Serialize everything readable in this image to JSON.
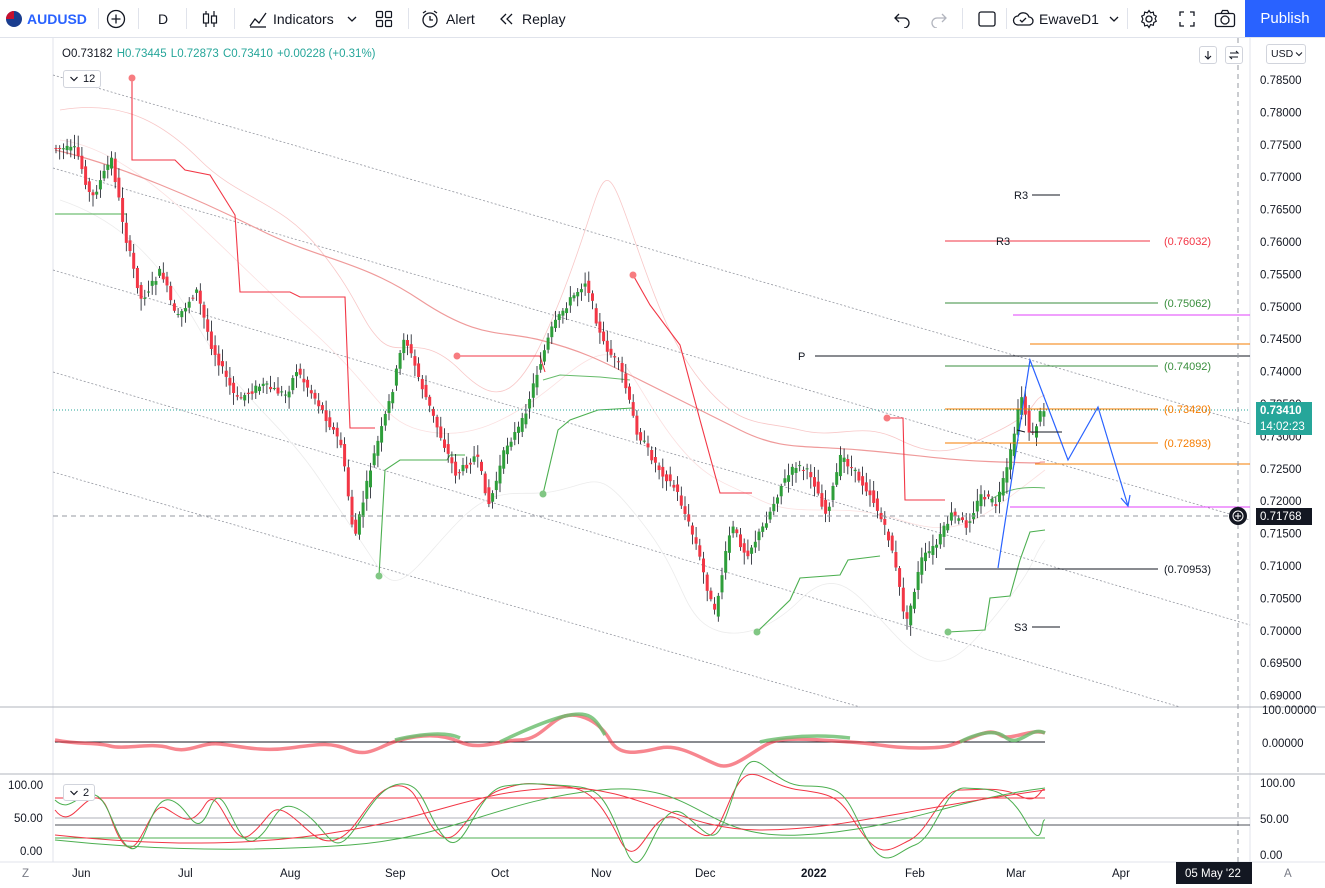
{
  "toolbar": {
    "symbol": "AUDUSD",
    "interval": "D",
    "indicators_label": "Indicators",
    "alert_label": "Alert",
    "replay_label": "Replay",
    "layout_name": "EwaveD1",
    "publish_label": "Publish"
  },
  "legend": {
    "open": "O0.73182",
    "high": "H0.73445",
    "low": "L0.72873",
    "close": "C0.73410",
    "change": "+0.00228 (+0.31%)",
    "indicator_count": "12",
    "pane_count": "2"
  },
  "price_axis": {
    "currency": "USD",
    "ticks": [
      "0.78500",
      "0.78000",
      "0.77500",
      "0.77000",
      "0.76500",
      "0.76000",
      "0.75500",
      "0.75000",
      "0.74500",
      "0.74000",
      "0.73500",
      "0.73000",
      "0.72500",
      "0.72000",
      "0.71500",
      "0.71000",
      "0.70500",
      "0.70000",
      "0.69500",
      "0.69000"
    ],
    "last_price": "0.73410",
    "countdown": "14:02:23",
    "crosshair_price": "0.71768"
  },
  "oscillator1_axis": {
    "ticks": [
      "100.00000",
      "0.00000"
    ]
  },
  "oscillator2_axis": {
    "left_ticks": [
      "100.00",
      "50.00",
      "0.00"
    ],
    "right_ticks": [
      "100.00",
      "50.00",
      "0.00"
    ]
  },
  "time_axis": {
    "labels": [
      "Jun",
      "Jul",
      "Aug",
      "Sep",
      "Oct",
      "Nov",
      "Dec",
      "2022",
      "Feb",
      "Mar",
      "Apr"
    ],
    "crosshair_date": "05 May '22",
    "left_button": "Z",
    "right_button": "A"
  },
  "pivot_levels": [
    {
      "label": "R3",
      "value": "(0.76032)",
      "color": "#f23645"
    },
    {
      "label": "",
      "value": "(0.75062)",
      "color": "#388e3c"
    },
    {
      "label": "",
      "value": "(0.74092)",
      "color": "#388e3c"
    },
    {
      "label": "",
      "value": "(0.73420)",
      "color": "#f57c00"
    },
    {
      "label": "",
      "value": "(0.72893)",
      "color": "#f57c00"
    },
    {
      "label": "",
      "value": "(0.70953)",
      "color": "#131722"
    }
  ],
  "chart_labels": {
    "r3_upper": "R3",
    "p": "P",
    "s3": "S3"
  },
  "colors": {
    "up": "#26a69a",
    "up_candle": "#2e9e3a",
    "down": "#f23645",
    "accent": "#2962ff"
  },
  "chart_data": {
    "type": "candlestick",
    "symbol": "AUDUSD",
    "timeframe": "D",
    "ylim": [
      0.6875,
      0.7875
    ],
    "last": {
      "open": 0.73182,
      "high": 0.73445,
      "low": 0.72873,
      "close": 0.7341
    },
    "pivot_levels": [
      0.76032,
      0.75062,
      0.74092,
      0.7342,
      0.72893,
      0.70953
    ]
  }
}
